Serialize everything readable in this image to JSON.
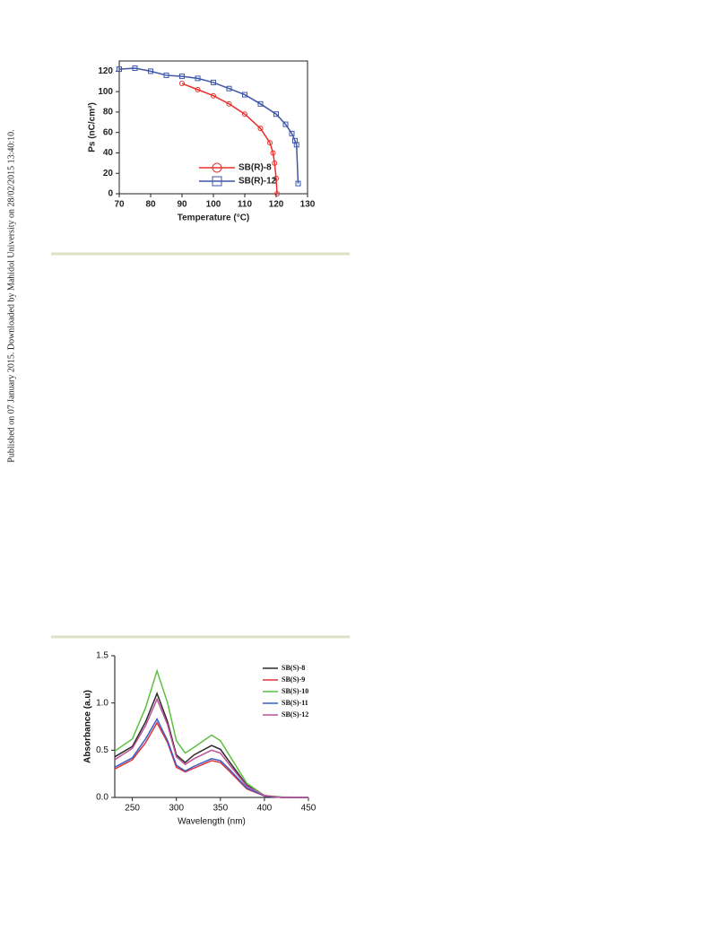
{
  "side_note": "Published on 07 January 2015. Downloaded by Mahidol University on 28/02/2015 13:40:10.",
  "chart_data": [
    {
      "type": "line",
      "xlabel": "Temperature (°C)",
      "ylabel": "Ps (nC/cm²)",
      "xlim": [
        70,
        130
      ],
      "ylim": [
        0,
        130
      ],
      "xticks": [
        70,
        80,
        90,
        100,
        110,
        120,
        130
      ],
      "yticks": [
        0,
        20,
        40,
        60,
        80,
        100,
        120
      ],
      "series": [
        {
          "name": "SB(R)-8",
          "color": "#e8302a",
          "marker": "circle",
          "x": [
            90,
            95,
            100,
            105,
            110,
            115,
            118,
            119,
            119.5,
            120,
            120.3
          ],
          "values": [
            108,
            102,
            96,
            88,
            78,
            64,
            50,
            40,
            30,
            15,
            0
          ]
        },
        {
          "name": "SB(R)-12",
          "color": "#3d56a8",
          "marker": "square",
          "x": [
            70,
            75,
            80,
            85,
            90,
            95,
            100,
            105,
            110,
            115,
            120,
            123,
            125,
            126,
            126.5,
            127
          ],
          "values": [
            122,
            123,
            120,
            116,
            115,
            113,
            109,
            103,
            97,
            88,
            78,
            68,
            59,
            52,
            48,
            10
          ]
        }
      ]
    },
    {
      "type": "line",
      "xlabel": "Wavelength (nm)",
      "ylabel": "Absorbance (a.u)",
      "xlim": [
        230,
        450
      ],
      "ylim": [
        0,
        1.5
      ],
      "xticks": [
        250,
        300,
        350,
        400,
        450
      ],
      "yticks": [
        {
          "value": 0,
          "label": "0.0"
        },
        0.5,
        {
          "value": 1,
          "label": "1.0"
        },
        {
          "value": 1.5,
          "label": "1.5"
        }
      ],
      "x": [
        230,
        250,
        265,
        278,
        290,
        300,
        310,
        320,
        340,
        350,
        360,
        380,
        400,
        420,
        450
      ],
      "series": [
        {
          "name": "SB(S)-8",
          "color": "#2a2a2a",
          "values": [
            0.43,
            0.54,
            0.8,
            1.1,
            0.8,
            0.45,
            0.37,
            0.45,
            0.55,
            0.51,
            0.38,
            0.13,
            0.02,
            0,
            0
          ]
        },
        {
          "name": "SB(S)-9",
          "color": "#e0323a",
          "values": [
            0.3,
            0.4,
            0.58,
            0.79,
            0.58,
            0.32,
            0.27,
            0.31,
            0.39,
            0.37,
            0.28,
            0.09,
            0.015,
            0,
            0
          ]
        },
        {
          "name": "SB(S)-10",
          "color": "#5cc040",
          "values": [
            0.49,
            0.62,
            0.95,
            1.34,
            1.0,
            0.6,
            0.47,
            0.53,
            0.66,
            0.6,
            0.45,
            0.15,
            0.02,
            0.005,
            0
          ]
        },
        {
          "name": "SB(S)-11",
          "color": "#3a5fc8",
          "values": [
            0.32,
            0.42,
            0.62,
            0.83,
            0.6,
            0.34,
            0.28,
            0.33,
            0.41,
            0.39,
            0.3,
            0.1,
            0.015,
            0,
            0
          ]
        },
        {
          "name": "SB(S)-12",
          "color": "#c0509a",
          "values": [
            0.4,
            0.52,
            0.76,
            1.04,
            0.77,
            0.43,
            0.35,
            0.41,
            0.5,
            0.47,
            0.35,
            0.12,
            0.02,
            0,
            0
          ]
        }
      ]
    }
  ]
}
